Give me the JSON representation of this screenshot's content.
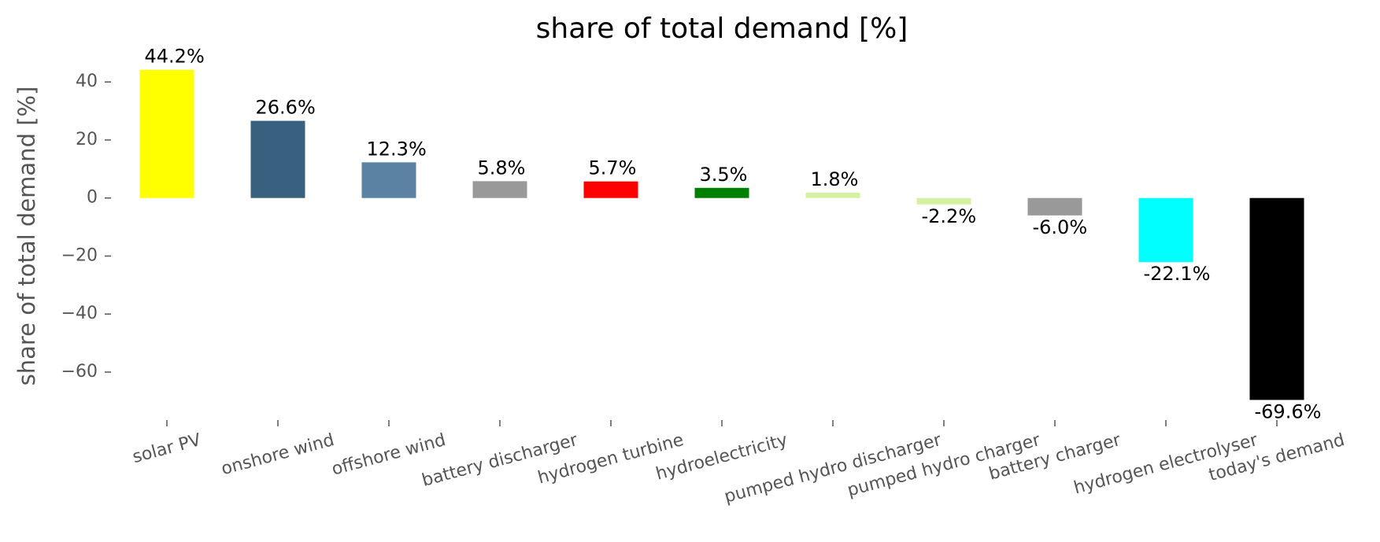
{
  "chart_data": {
    "type": "bar",
    "title": "share of total demand [%]",
    "y_label": "share of total demand [%]",
    "categories": [
      "solar PV",
      "onshore wind",
      "offshore wind",
      "battery discharger",
      "hydrogen turbine",
      "hydroelectricity",
      "pumped hydro discharger",
      "pumped hydro charger",
      "battery charger",
      "hydrogen electrolyser",
      "today's demand"
    ],
    "values": [
      44.2,
      26.6,
      12.3,
      5.8,
      5.7,
      3.5,
      1.8,
      -2.2,
      -6.0,
      -22.1,
      -69.6
    ],
    "value_labels": [
      "44.2%",
      "26.6%",
      "12.3%",
      "5.8%",
      "5.7%",
      "3.5%",
      "1.8%",
      "-2.2%",
      "-6.0%",
      "-22.1%",
      "-69.6%"
    ],
    "colors": [
      "#ffff00",
      "#38617f",
      "#5b82a3",
      "#999999",
      "#ff0000",
      "#008000",
      "#d4f1a1",
      "#d4f1a1",
      "#999999",
      "#00ffff",
      "#000000"
    ],
    "ylim": [
      -76,
      49
    ],
    "yticks": [
      {
        "value": -60,
        "label": "−60"
      },
      {
        "value": -40,
        "label": "−40"
      },
      {
        "value": -20,
        "label": "−20"
      },
      0,
      20,
      40
    ],
    "grid": false
  }
}
